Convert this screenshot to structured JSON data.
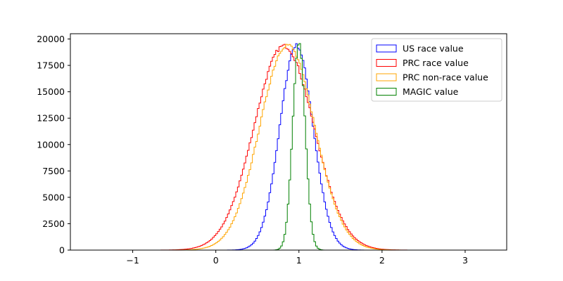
{
  "chart_data": {
    "type": "histogram",
    "title": "",
    "xlabel": "",
    "ylabel": "",
    "xlim": [
      -1.75,
      3.5
    ],
    "ylim": [
      0,
      20500
    ],
    "x_ticks": [
      -1,
      0,
      1,
      2,
      3
    ],
    "y_ticks": [
      0,
      2500,
      5000,
      7500,
      10000,
      12500,
      15000,
      17500,
      20000
    ],
    "histtype": "step",
    "grid": false,
    "legend_position": "top-right",
    "series": [
      {
        "name": "US race value",
        "color": "#0000ff",
        "center": 0.97,
        "sigma": 0.2,
        "peak": 19400,
        "range": [
          0.0,
          1.85
        ]
      },
      {
        "name": "PRC race value",
        "color": "#ff0000",
        "center": 0.82,
        "sigma": 0.36,
        "peak": 19350,
        "range": [
          -1.5,
          2.6
        ]
      },
      {
        "name": "PRC non-race value",
        "color": "#ffa500",
        "center": 0.86,
        "sigma": 0.33,
        "peak": 19450,
        "range": [
          -1.1,
          3.3
        ]
      },
      {
        "name": "MAGIC value",
        "color": "#008000",
        "center": 1.0,
        "sigma": 0.075,
        "peak": 19600,
        "range": [
          0.62,
          1.36
        ]
      }
    ]
  }
}
